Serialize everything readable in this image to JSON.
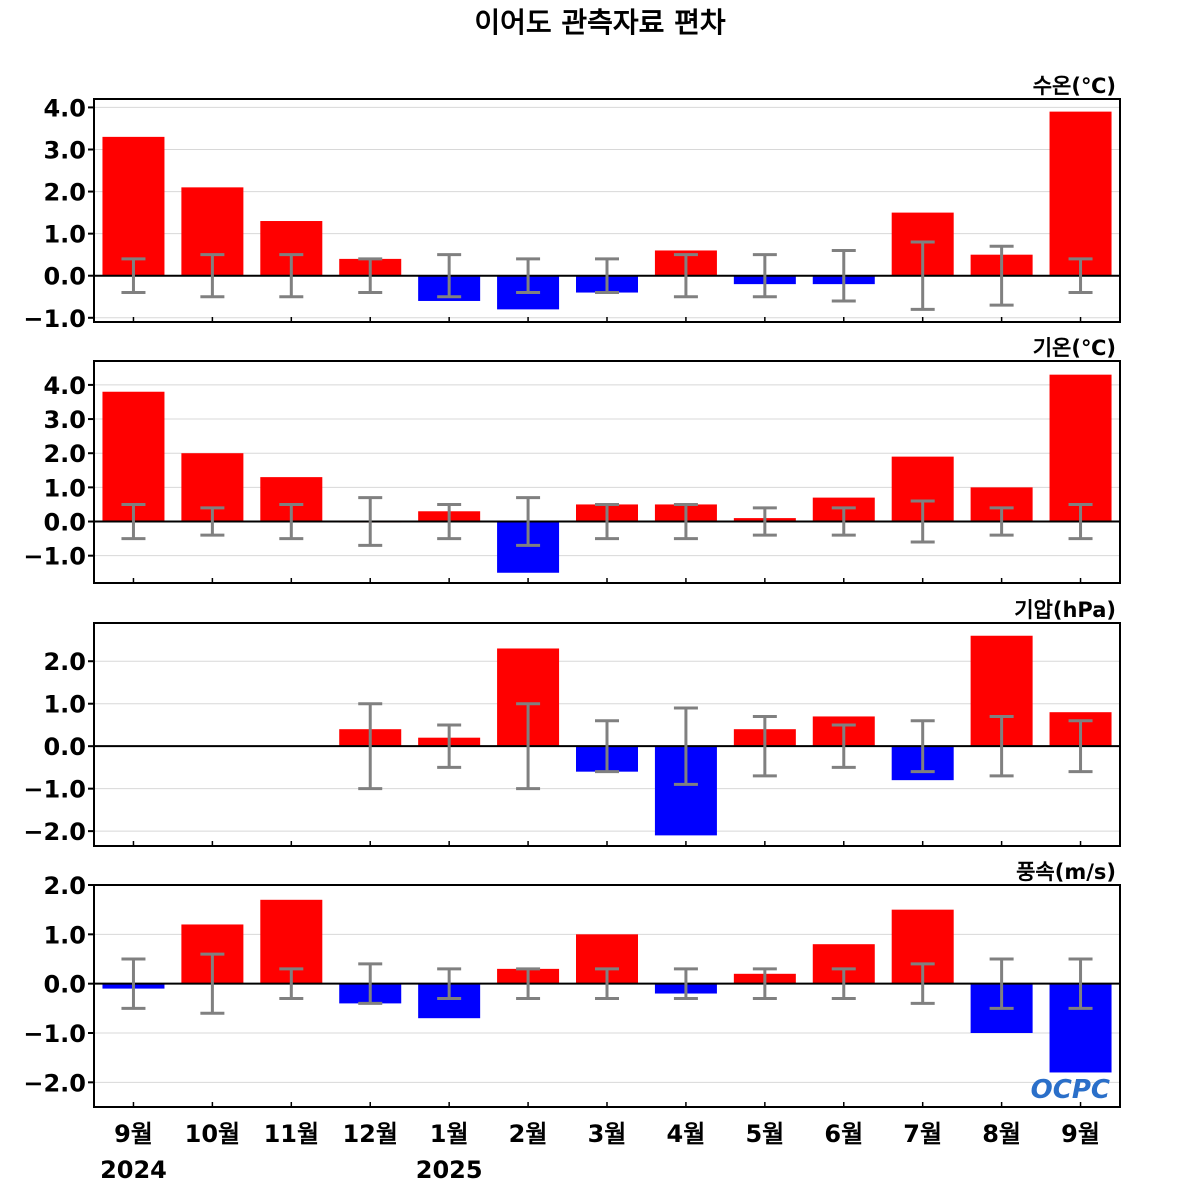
{
  "title": "이어도 관측자료 편차",
  "logo": "OCPC",
  "colors": {
    "positive": "#ff0000",
    "negative": "#0000ff",
    "error_bar": "#808080",
    "grid": "#d8d8d8",
    "zero_line": "#000000"
  },
  "chart_data": [
    {
      "type": "bar",
      "label": "수온(℃)",
      "categories": [
        "9월",
        "10월",
        "11월",
        "12월",
        "1월",
        "2월",
        "3월",
        "4월",
        "5월",
        "6월",
        "7월",
        "8월",
        "9월"
      ],
      "values": [
        3.3,
        2.1,
        1.3,
        0.4,
        -0.6,
        -0.8,
        -0.4,
        0.6,
        -0.2,
        -0.2,
        1.5,
        0.5,
        3.9
      ],
      "error": [
        0.4,
        0.5,
        0.5,
        0.4,
        0.5,
        0.4,
        0.4,
        0.5,
        0.5,
        0.6,
        0.8,
        0.7,
        0.4
      ],
      "ylim": [
        -1.1,
        4.2
      ],
      "yticks": [
        4.0,
        3.0,
        2.0,
        1.0,
        0.0,
        -1.0
      ],
      "ytick_labels": [
        "4.0",
        "3.0",
        "2.0",
        "1.0",
        "0.0",
        "−1.0"
      ]
    },
    {
      "type": "bar",
      "label": "기온(℃)",
      "categories": [
        "9월",
        "10월",
        "11월",
        "12월",
        "1월",
        "2월",
        "3월",
        "4월",
        "5월",
        "6월",
        "7월",
        "8월",
        "9월"
      ],
      "values": [
        3.8,
        2.0,
        1.3,
        0.0,
        0.3,
        -1.5,
        0.5,
        0.5,
        0.1,
        0.7,
        1.9,
        1.0,
        4.3
      ],
      "error": [
        0.5,
        0.4,
        0.5,
        0.7,
        0.5,
        0.7,
        0.5,
        0.5,
        0.4,
        0.4,
        0.6,
        0.4,
        0.5
      ],
      "ylim": [
        -1.8,
        4.7
      ],
      "yticks": [
        4.0,
        3.0,
        2.0,
        1.0,
        0.0,
        -1.0
      ],
      "ytick_labels": [
        "4.0",
        "3.0",
        "2.0",
        "1.0",
        "0.0",
        "−1.0"
      ]
    },
    {
      "type": "bar",
      "label": "기압(hPa)",
      "categories": [
        "9월",
        "10월",
        "11월",
        "12월",
        "1월",
        "2월",
        "3월",
        "4월",
        "5월",
        "6월",
        "7월",
        "8월",
        "9월"
      ],
      "values": [
        null,
        null,
        null,
        0.4,
        0.2,
        2.3,
        -0.6,
        -2.1,
        0.4,
        0.7,
        -0.8,
        2.6,
        0.8
      ],
      "error": [
        null,
        null,
        null,
        1.0,
        0.5,
        1.0,
        0.6,
        0.9,
        0.7,
        0.5,
        0.6,
        0.7,
        0.6
      ],
      "ylim": [
        -2.35,
        2.9
      ],
      "yticks": [
        2.0,
        1.0,
        0.0,
        -1.0,
        -2.0
      ],
      "ytick_labels": [
        "2.0",
        "1.0",
        "0.0",
        "−1.0",
        "−2.0"
      ]
    },
    {
      "type": "bar",
      "label": "풍속(m/s)",
      "categories": [
        "9월",
        "10월",
        "11월",
        "12월",
        "1월",
        "2월",
        "3월",
        "4월",
        "5월",
        "6월",
        "7월",
        "8월",
        "9월"
      ],
      "values": [
        -0.1,
        1.2,
        1.7,
        -0.4,
        -0.7,
        0.3,
        1.0,
        -0.2,
        0.2,
        0.8,
        1.5,
        -1.0,
        -1.8
      ],
      "error": [
        0.5,
        0.6,
        0.3,
        0.4,
        0.3,
        0.3,
        0.3,
        0.3,
        0.3,
        0.3,
        0.4,
        0.5,
        0.5
      ],
      "ylim": [
        -2.5,
        2.0
      ],
      "yticks": [
        2.0,
        1.0,
        0.0,
        -1.0,
        -2.0
      ],
      "ytick_labels": [
        "2.0",
        "1.0",
        "0.0",
        "−1.0",
        "−2.0"
      ]
    }
  ],
  "x_axis": {
    "labels": [
      "9월",
      "10월",
      "11월",
      "12월",
      "1월",
      "2월",
      "3월",
      "4월",
      "5월",
      "6월",
      "7월",
      "8월",
      "9월"
    ],
    "years": [
      {
        "label": "2024",
        "at_index": 0
      },
      {
        "label": "2025",
        "at_index": 4
      }
    ]
  }
}
